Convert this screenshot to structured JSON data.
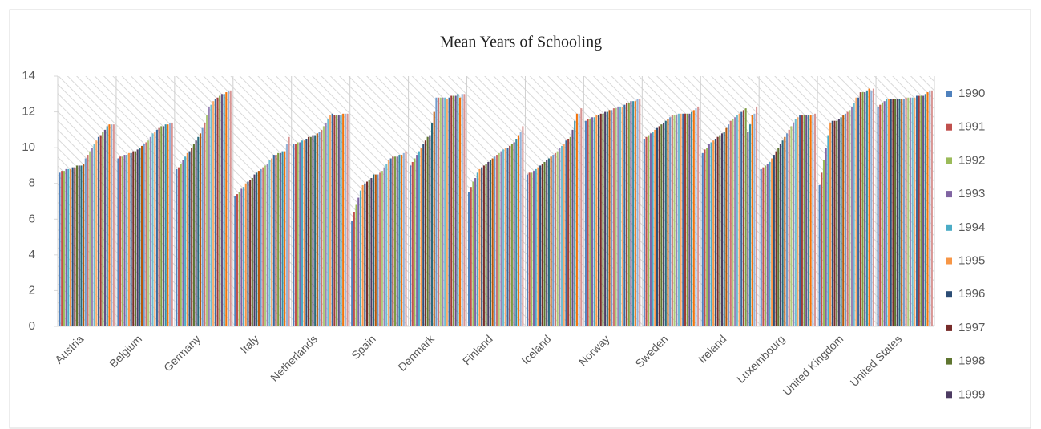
{
  "chart_data": {
    "type": "bar",
    "title": "Mean Years of Schooling",
    "categories": [
      "Austria",
      "Belgium",
      "Germany",
      "Italy",
      "Netherlands",
      "Spain",
      "Denmark",
      "Finland",
      "Iceland",
      "Norway",
      "Sweden",
      "Ireland",
      "Luxembourg",
      "United Kingdom",
      "United States"
    ],
    "ylim": [
      0,
      14
    ],
    "yticks": [
      0,
      2,
      4,
      6,
      8,
      10,
      12,
      14
    ],
    "grid": true,
    "legend": "right",
    "series": [
      {
        "name": "1990",
        "color": "#4f81bd",
        "values": [
          8.6,
          9.4,
          8.8,
          7.3,
          10.2,
          5.9,
          9.0,
          7.5,
          8.5,
          11.5,
          10.5,
          9.7,
          8.8,
          7.9,
          12.3
        ]
      },
      {
        "name": "1991",
        "color": "#c0504d",
        "values": [
          8.7,
          9.5,
          8.9,
          7.4,
          10.2,
          6.4,
          9.2,
          7.8,
          8.6,
          11.6,
          10.6,
          9.9,
          8.9,
          8.6,
          12.4
        ]
      },
      {
        "name": "1992",
        "color": "#9bbb59",
        "values": [
          8.7,
          9.5,
          9.1,
          7.5,
          10.3,
          6.8,
          9.4,
          8.1,
          8.6,
          11.6,
          10.7,
          10.0,
          9.0,
          9.3,
          12.5
        ]
      },
      {
        "name": "1993",
        "color": "#8064a2",
        "values": [
          8.8,
          9.6,
          9.3,
          7.7,
          10.3,
          7.2,
          9.6,
          8.3,
          8.7,
          11.7,
          10.8,
          10.2,
          9.1,
          10.0,
          12.6
        ]
      },
      {
        "name": "1994",
        "color": "#4bacc6",
        "values": [
          8.8,
          9.6,
          9.5,
          7.8,
          10.4,
          7.6,
          9.8,
          8.6,
          8.8,
          11.7,
          10.9,
          10.3,
          9.2,
          10.7,
          12.7
        ]
      },
      {
        "name": "1995",
        "color": "#f79646",
        "values": [
          8.8,
          9.7,
          9.7,
          8.0,
          10.4,
          7.9,
          10.0,
          8.8,
          8.9,
          11.8,
          11.0,
          10.4,
          9.4,
          11.4,
          12.7
        ]
      },
      {
        "name": "1996",
        "color": "#2c4d75",
        "values": [
          8.9,
          9.7,
          9.8,
          8.1,
          10.5,
          8.0,
          10.2,
          8.9,
          9.0,
          11.8,
          11.1,
          10.5,
          9.6,
          11.5,
          12.7
        ]
      },
      {
        "name": "1997",
        "color": "#772c2a",
        "values": [
          8.9,
          9.8,
          10.0,
          8.2,
          10.6,
          8.1,
          10.4,
          9.0,
          9.1,
          11.9,
          11.2,
          10.6,
          9.8,
          11.5,
          12.7
        ]
      },
      {
        "name": "1998",
        "color": "#5f7530",
        "values": [
          9.0,
          9.8,
          10.2,
          8.3,
          10.6,
          8.2,
          10.6,
          9.1,
          9.2,
          11.9,
          11.3,
          10.7,
          10.0,
          11.5,
          12.7
        ]
      },
      {
        "name": "1999",
        "color": "#4d3b62",
        "values": [
          9.0,
          9.9,
          10.4,
          8.5,
          10.7,
          8.3,
          10.7,
          9.2,
          9.3,
          12.0,
          11.4,
          10.8,
          10.2,
          11.6,
          12.7
        ]
      },
      {
        "color": "#276a7c",
        "values": [
          9.0,
          10.0,
          10.6,
          8.6,
          10.7,
          8.5,
          11.4,
          9.3,
          9.4,
          12.0,
          11.5,
          10.9,
          10.4,
          11.7,
          12.7
        ]
      },
      {
        "color": "#b65708",
        "values": [
          9.1,
          10.1,
          10.8,
          8.7,
          10.8,
          8.5,
          12.0,
          9.4,
          9.5,
          12.1,
          11.6,
          11.1,
          10.6,
          11.8,
          12.7
        ]
      },
      {
        "color": "#729aca",
        "values": [
          9.4,
          10.2,
          11.1,
          8.8,
          10.9,
          8.5,
          12.8,
          9.5,
          9.6,
          12.1,
          11.7,
          11.3,
          10.8,
          11.9,
          12.7
        ]
      },
      {
        "color": "#cd7371",
        "values": [
          9.6,
          10.3,
          11.4,
          8.9,
          11.0,
          8.6,
          12.8,
          9.6,
          9.7,
          12.2,
          11.8,
          11.5,
          11.0,
          12.0,
          12.8
        ]
      },
      {
        "color": "#afc97a",
        "values": [
          9.8,
          10.4,
          11.8,
          9.0,
          11.2,
          8.7,
          12.8,
          9.7,
          9.8,
          12.2,
          11.8,
          11.6,
          11.2,
          12.1,
          12.8
        ]
      },
      {
        "color": "#9983b5",
        "values": [
          10.0,
          10.6,
          12.3,
          9.1,
          11.4,
          8.9,
          12.8,
          9.8,
          10.0,
          12.3,
          11.8,
          11.7,
          11.4,
          12.3,
          12.8
        ]
      },
      {
        "color": "#6fbdd1",
        "values": [
          10.2,
          10.8,
          12.4,
          9.3,
          11.6,
          9.1,
          12.8,
          9.9,
          10.1,
          12.3,
          11.9,
          11.8,
          11.6,
          12.5,
          12.8
        ]
      },
      {
        "color": "#f9ab6b",
        "values": [
          10.4,
          10.9,
          12.6,
          9.4,
          11.8,
          9.3,
          12.7,
          10.0,
          10.2,
          12.3,
          11.9,
          11.9,
          11.7,
          12.8,
          12.8
        ]
      },
      {
        "color": "#3a679c",
        "values": [
          10.6,
          11.0,
          12.7,
          9.6,
          11.9,
          9.4,
          12.8,
          10.0,
          10.4,
          12.4,
          11.9,
          12.0,
          11.8,
          12.8,
          12.9
        ]
      },
      {
        "color": "#9e3b38",
        "values": [
          10.7,
          11.1,
          12.8,
          9.6,
          11.8,
          9.5,
          12.9,
          10.1,
          10.5,
          12.5,
          11.9,
          12.1,
          11.8,
          13.1,
          12.9
        ]
      },
      {
        "color": "#7e9c40",
        "values": [
          10.9,
          11.2,
          12.9,
          9.7,
          11.8,
          9.5,
          12.9,
          10.2,
          10.6,
          12.5,
          11.9,
          12.2,
          11.8,
          13.1,
          12.9
        ]
      },
      {
        "color": "#664f83",
        "values": [
          11.0,
          11.2,
          13.0,
          9.7,
          11.8,
          9.5,
          12.9,
          10.3,
          11.0,
          12.6,
          11.9,
          10.9,
          11.8,
          13.1,
          12.9
        ]
      },
      {
        "color": "#358ca3",
        "values": [
          11.2,
          11.3,
          13.0,
          9.8,
          11.8,
          9.6,
          13.0,
          10.5,
          11.5,
          12.6,
          12.0,
          11.3,
          11.8,
          13.2,
          13.0
        ]
      },
      {
        "color": "#f3740b",
        "values": [
          11.3,
          11.3,
          13.1,
          9.8,
          11.9,
          9.6,
          12.8,
          10.7,
          11.9,
          12.6,
          12.1,
          11.8,
          11.8,
          13.3,
          13.1
        ]
      },
      {
        "color": "#95b3d7",
        "values": [
          11.3,
          11.4,
          13.2,
          10.2,
          11.9,
          9.7,
          13.0,
          10.9,
          11.9,
          12.7,
          12.2,
          11.9,
          11.8,
          13.2,
          13.2
        ]
      },
      {
        "color": "#d99694",
        "values": [
          11.3,
          11.4,
          13.2,
          10.6,
          11.9,
          9.8,
          13.0,
          11.2,
          12.2,
          12.7,
          12.3,
          12.3,
          11.9,
          13.3,
          13.2
        ]
      }
    ]
  }
}
